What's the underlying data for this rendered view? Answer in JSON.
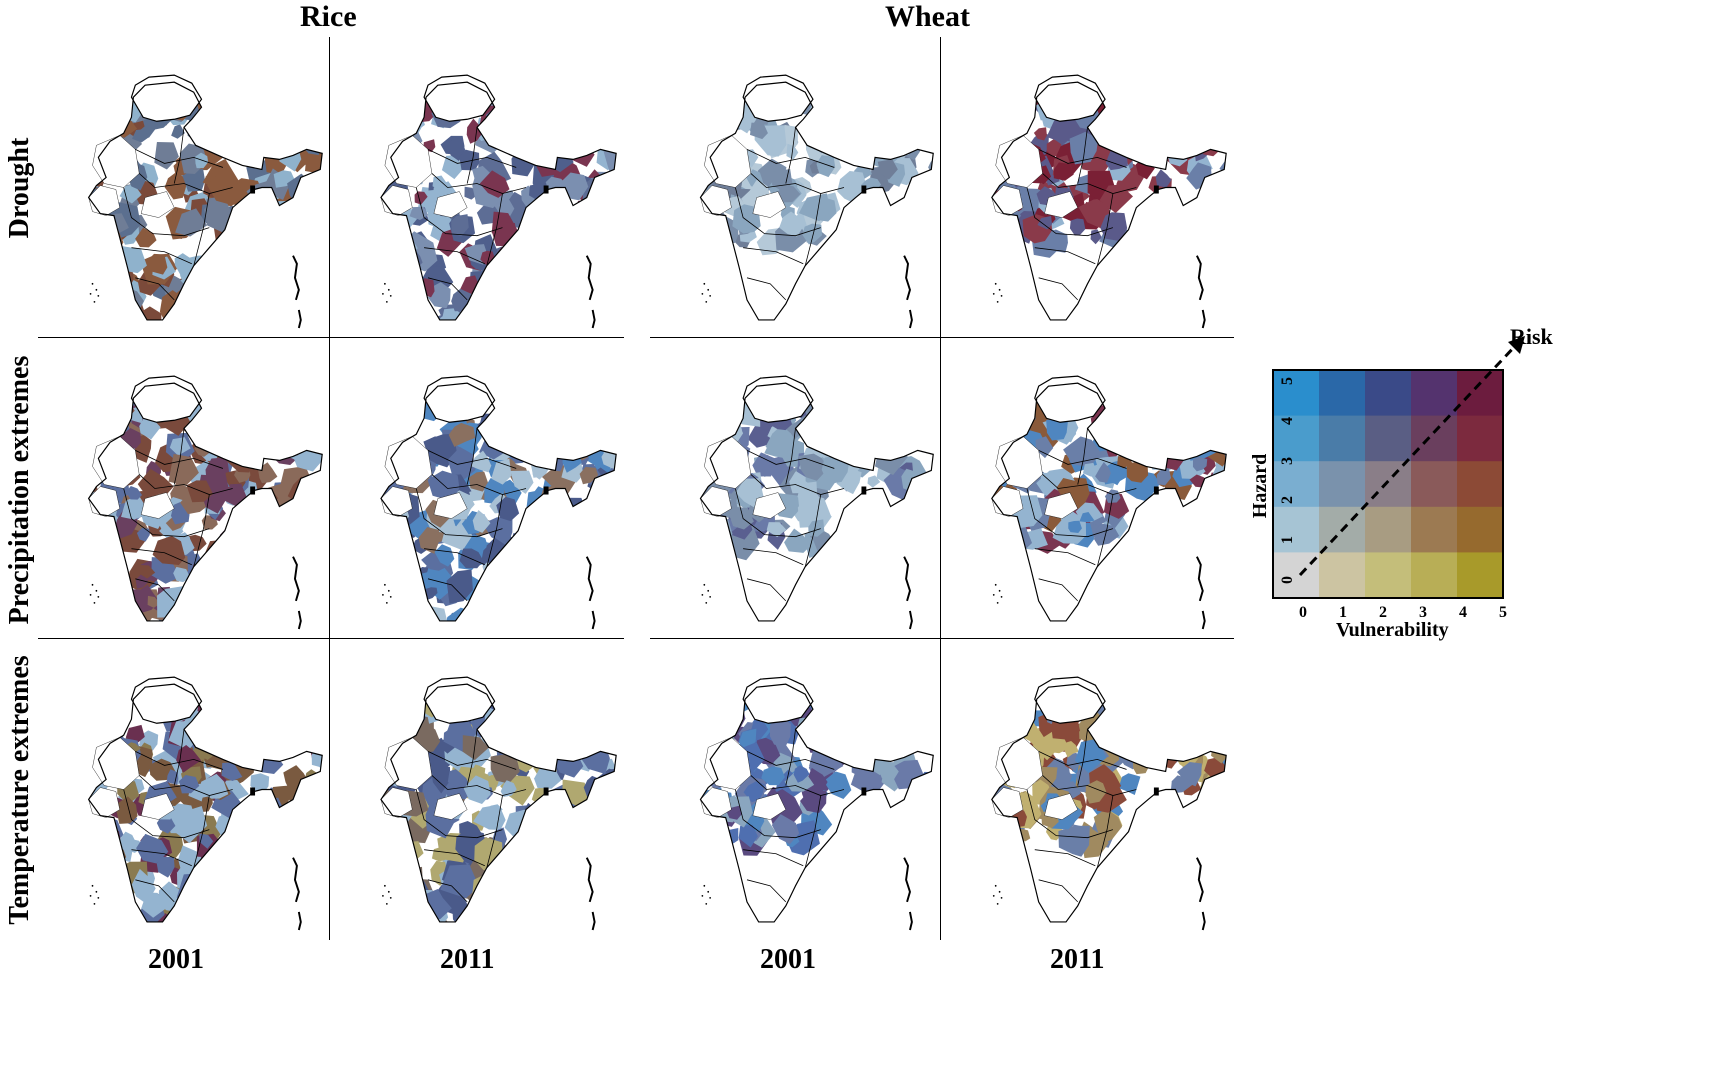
{
  "crops": [
    "Rice",
    "Wheat"
  ],
  "years": [
    "2001",
    "2011"
  ],
  "hazards": [
    "Drought",
    "Precipitation extremes",
    "Temperature extremes"
  ],
  "panels": [
    {
      "crop": "Rice",
      "hazard": "Drought",
      "year": "2001",
      "dominant": [
        "#7b4a3a",
        "#8a5a3e",
        "#6f7d96",
        "#8fb2cc",
        "#5b6f8f"
      ]
    },
    {
      "crop": "Rice",
      "hazard": "Drought",
      "year": "2011",
      "dominant": [
        "#5d6d95",
        "#7b8fb0",
        "#7a3550",
        "#94b4d0",
        "#4f5f8c"
      ]
    },
    {
      "crop": "Wheat",
      "hazard": "Drought",
      "year": "2001",
      "dominant": [
        "#8aa6bf",
        "#7a8ea9",
        "#a7c0d4",
        "#6f7e98",
        "#b5c9d8"
      ]
    },
    {
      "crop": "Wheat",
      "hazard": "Drought",
      "year": "2011",
      "dominant": [
        "#7a2035",
        "#8a3a4a",
        "#6a7fa8",
        "#94b4d0",
        "#5a5a8a"
      ]
    },
    {
      "crop": "Rice",
      "hazard": "Precipitation extremes",
      "year": "2001",
      "dominant": [
        "#7a4a3c",
        "#8a6a5a",
        "#5b6fa0",
        "#94b4d0",
        "#6a4060"
      ]
    },
    {
      "crop": "Rice",
      "hazard": "Precipitation extremes",
      "year": "2011",
      "dominant": [
        "#5b6fa0",
        "#4f86c0",
        "#8a7060",
        "#a7c0d4",
        "#4a5a8a"
      ]
    },
    {
      "crop": "Wheat",
      "hazard": "Precipitation extremes",
      "year": "2001",
      "dominant": [
        "#6a7aa8",
        "#8aa6bf",
        "#5a5f90",
        "#a7c0d4",
        "#7a8ea9"
      ]
    },
    {
      "crop": "Wheat",
      "hazard": "Precipitation extremes",
      "year": "2011",
      "dominant": [
        "#8a5a3a",
        "#7a3550",
        "#4f86c0",
        "#6a7fa8",
        "#94b4d0"
      ]
    },
    {
      "crop": "Rice",
      "hazard": "Temperature extremes",
      "year": "2001",
      "dominant": [
        "#6a3050",
        "#7a5a40",
        "#5b6fa0",
        "#94b4d0",
        "#8a7a50"
      ]
    },
    {
      "crop": "Rice",
      "hazard": "Temperature extremes",
      "year": "2011",
      "dominant": [
        "#b0a870",
        "#5b6fa0",
        "#94b4d0",
        "#7a6a60",
        "#4a5a8a"
      ]
    },
    {
      "crop": "Wheat",
      "hazard": "Temperature extremes",
      "year": "2001",
      "dominant": [
        "#4f6fb0",
        "#5a4a80",
        "#8aa6bf",
        "#6a7aa8",
        "#4f86c0"
      ]
    },
    {
      "crop": "Wheat",
      "hazard": "Temperature extremes",
      "year": "2011",
      "dominant": [
        "#8a4a3a",
        "#c0b070",
        "#4f86c0",
        "#a08a60",
        "#6a7fa8"
      ]
    }
  ],
  "legend": {
    "title": "Risk",
    "xlabel": "Vulnerability",
    "ylabel": "Hazard",
    "xticks": [
      "0",
      "1",
      "2",
      "3",
      "4",
      "5"
    ],
    "yticks": [
      "0",
      "1",
      "2",
      "3",
      "4",
      "5"
    ],
    "matrix_rows_top_to_bottom": [
      [
        "#2a8ecd",
        "#2a68a8",
        "#3a4a88",
        "#54336e",
        "#6c1c3e"
      ],
      [
        "#4a9ccc",
        "#4a7ca8",
        "#5a5e84",
        "#6a3f5e",
        "#7c2a3e"
      ],
      [
        "#7aaed0",
        "#7a92ac",
        "#8a7e88",
        "#8a5a5a",
        "#8c4a36"
      ],
      [
        "#a6c4d4",
        "#a3aca8",
        "#a89c82",
        "#9c7a52",
        "#966a2e"
      ],
      [
        "#d4d4d4",
        "#ccc4a2",
        "#c4be7a",
        "#b8ae56",
        "#a89a2a"
      ]
    ]
  }
}
